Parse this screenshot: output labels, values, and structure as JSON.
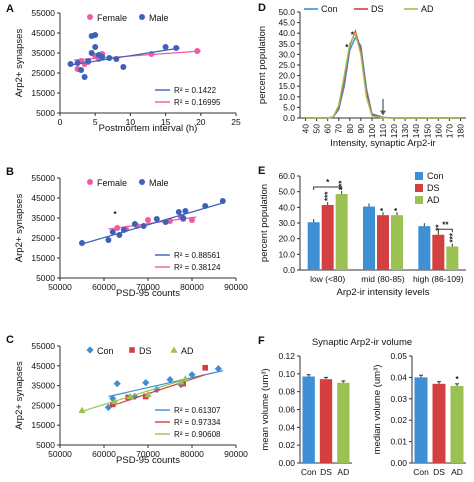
{
  "colors": {
    "female": "#ee5aa6",
    "male": "#3a63b8",
    "con": "#3f8fd4",
    "ds": "#d44040",
    "ad": "#9bc153",
    "axis": "#333333",
    "grid": "#d9d9d9"
  },
  "chart_data": [
    {
      "panel": "A",
      "type": "scatter",
      "xlabel": "Postmortem interval (h)",
      "ylabel": "Arp2+ synapses",
      "xlim": [
        0,
        25
      ],
      "ylim": [
        5000,
        55000
      ],
      "xticks": [
        "0",
        "5",
        "10",
        "15",
        "20",
        "25"
      ],
      "yticks": [
        "5000",
        "15000",
        "25000",
        "35000",
        "45000",
        "55000"
      ],
      "legend": [
        "Female",
        "Male"
      ],
      "series": [
        {
          "name": "Female",
          "color": "#ee5aa6",
          "points": [
            [
              2.5,
              27000
            ],
            [
              3,
              31000
            ],
            [
              3.5,
              29500
            ],
            [
              4,
              30500
            ],
            [
              5,
              33500
            ],
            [
              5.5,
              32000
            ],
            [
              6,
              34500
            ],
            [
              13,
              34500
            ],
            [
              19.5,
              36000
            ]
          ],
          "trend": [
            [
              2,
              31500
            ],
            [
              20,
              36000
            ]
          ],
          "r2": "R² = 0.16995"
        },
        {
          "name": "Male",
          "color": "#3a63b8",
          "points": [
            [
              1.5,
              29500
            ],
            [
              2.5,
              30000
            ],
            [
              3,
              26500
            ],
            [
              3.5,
              23000
            ],
            [
              4,
              31000
            ],
            [
              4.5,
              35000
            ],
            [
              4.5,
              43500
            ],
            [
              5,
              44000
            ],
            [
              5,
              38000
            ],
            [
              5.5,
              34000
            ],
            [
              6,
              33000
            ],
            [
              7,
              32500
            ],
            [
              8,
              32000
            ],
            [
              9,
              28000
            ],
            [
              15,
              38000
            ],
            [
              16.5,
              37500
            ]
          ],
          "trend": [
            [
              1.5,
              29000
            ],
            [
              17,
              37500
            ]
          ],
          "r2": "R² = 0.1422"
        }
      ]
    },
    {
      "panel": "B",
      "type": "scatter",
      "xlabel": "PSD-95 counts",
      "ylabel": "Arp2+ synapses",
      "xlim": [
        50000,
        90000
      ],
      "ylim": [
        5000,
        55000
      ],
      "xticks": [
        "50000",
        "60000",
        "70000",
        "80000",
        "90000"
      ],
      "yticks": [
        "5000",
        "15000",
        "25000",
        "35000",
        "45000",
        "55000"
      ],
      "legend": [
        "Female",
        "Male"
      ],
      "annotations": [
        {
          "text": "*",
          "x": 62500,
          "y": 35500
        }
      ],
      "series": [
        {
          "name": "Female",
          "color": "#ee5aa6",
          "points": [
            [
              63000,
              30000
            ],
            [
              65000,
              29500
            ],
            [
              67500,
              31000
            ],
            [
              70000,
              34000
            ],
            [
              75000,
              33500
            ],
            [
              77500,
              35500
            ],
            [
              78000,
              34500
            ],
            [
              80000,
              34000
            ]
          ],
          "trend": [
            [
              61000,
              29500
            ],
            [
              81000,
              35500
            ]
          ],
          "r2": "R² = 0.38124"
        },
        {
          "name": "Male",
          "color": "#3a63b8",
          "points": [
            [
              55000,
              22500
            ],
            [
              61000,
              24000
            ],
            [
              62000,
              28000
            ],
            [
              63500,
              26500
            ],
            [
              64500,
              29000
            ],
            [
              67000,
              32000
            ],
            [
              69000,
              31000
            ],
            [
              72000,
              34500
            ],
            [
              74000,
              33000
            ],
            [
              77000,
              38000
            ],
            [
              78000,
              35000
            ],
            [
              78500,
              38500
            ],
            [
              83000,
              41000
            ],
            [
              87000,
              43500
            ]
          ],
          "trend": [
            [
              55000,
              22000
            ],
            [
              87000,
              42500
            ]
          ],
          "r2": "R² = 0.88561"
        }
      ]
    },
    {
      "panel": "C",
      "type": "scatter",
      "xlabel": "PSD-95 counts",
      "ylabel": "Arp2+ synapses",
      "xlim": [
        50000,
        90000
      ],
      "ylim": [
        5000,
        55000
      ],
      "xticks": [
        "50000",
        "60000",
        "70000",
        "80000",
        "90000"
      ],
      "yticks": [
        "5000",
        "15000",
        "25000",
        "35000",
        "45000",
        "55000"
      ],
      "legend": [
        "Con",
        "DS",
        "AD"
      ],
      "series": [
        {
          "name": "Con",
          "color": "#3f8fd4",
          "marker": "diamond",
          "points": [
            [
              61000,
              24000
            ],
            [
              62000,
              28500
            ],
            [
              63000,
              36000
            ],
            [
              67000,
              29500
            ],
            [
              69500,
              36500
            ],
            [
              72000,
              33000
            ],
            [
              75000,
              38000
            ],
            [
              77500,
              35500
            ],
            [
              80000,
              40500
            ],
            [
              86000,
              43500
            ]
          ],
          "trend": [
            [
              61000,
              29500
            ],
            [
              87000,
              42500
            ]
          ],
          "r2": "R² = 0.61307"
        },
        {
          "name": "DS",
          "color": "#d44040",
          "marker": "square",
          "points": [
            [
              62000,
              25500
            ],
            [
              65500,
              29000
            ],
            [
              69500,
              29500
            ],
            [
              78000,
              36000
            ],
            [
              83000,
              44000
            ]
          ],
          "trend": [
            [
              62000,
              25000
            ],
            [
              83000,
              40500
            ]
          ],
          "r2": "R² = 0.97334"
        },
        {
          "name": "AD",
          "color": "#9bc153",
          "marker": "triangle",
          "points": [
            [
              55000,
              22500
            ],
            [
              62500,
              27000
            ],
            [
              66000,
              29500
            ],
            [
              70000,
              30500
            ],
            [
              77500,
              37000
            ],
            [
              78500,
              38500
            ]
          ],
          "trend": [
            [
              55000,
              22000
            ],
            [
              79000,
              38500
            ]
          ],
          "r2": "R² = 0.90608"
        }
      ]
    },
    {
      "panel": "D",
      "type": "line",
      "xlabel": "Intensity, synaptic Arp2-ir",
      "ylabel": "percent population",
      "x": [
        40,
        50,
        60,
        70,
        80,
        90,
        100,
        110,
        120,
        130,
        140,
        150,
        160,
        170,
        180
      ],
      "ylim": [
        0,
        50
      ],
      "yticks": [
        "0.0",
        "5.0",
        "10.0",
        "15.0",
        "20.0",
        "25.0",
        "30.0",
        "35.0",
        "40.0",
        "45.0",
        "50.0"
      ],
      "legend_position": "top",
      "annotations": [
        {
          "text": "*",
          "x": 80,
          "y": 32
        },
        {
          "text": "*",
          "x": 85,
          "y": 38
        }
      ],
      "arrow_at_x": 110,
      "series": [
        {
          "name": "Con",
          "color": "#3f8fd4",
          "x": [
            40,
            50,
            60,
            65,
            70,
            75,
            80,
            85,
            90,
            95,
            100,
            110,
            120,
            130,
            140,
            150,
            160,
            170,
            180
          ],
          "values": [
            0,
            0,
            0,
            0.5,
            4,
            15,
            32,
            38,
            34,
            14,
            2,
            0.3,
            0,
            0,
            0,
            0,
            0,
            0,
            0
          ]
        },
        {
          "name": "DS",
          "color": "#d44040",
          "x": [
            40,
            50,
            60,
            65,
            70,
            75,
            80,
            85,
            90,
            95,
            100,
            110,
            120,
            130,
            140,
            150,
            160,
            170,
            180
          ],
          "values": [
            0,
            0,
            0,
            0.5,
            5,
            18,
            34,
            41,
            32,
            12,
            1.5,
            0.2,
            0,
            0,
            0,
            0,
            0,
            0,
            0
          ]
        },
        {
          "name": "AD",
          "color": "#9bc153",
          "x": [
            40,
            50,
            60,
            65,
            70,
            75,
            80,
            85,
            90,
            95,
            100,
            110,
            120,
            130,
            140,
            150,
            160,
            170,
            180
          ],
          "values": [
            0,
            0,
            0,
            0.5,
            6,
            20,
            35,
            40,
            30,
            10,
            1,
            0.1,
            0,
            0,
            0,
            0,
            0,
            0,
            0
          ]
        }
      ]
    },
    {
      "panel": "E",
      "type": "bar",
      "xlabel": "Arp2-ir intensity levels",
      "ylabel": "percent population",
      "categories": [
        "low (<80)",
        "mid (80-85)",
        "high (86-109)"
      ],
      "ylim": [
        0,
        60
      ],
      "yticks": [
        "0.0",
        "10.0",
        "20.0",
        "30.0",
        "40.0",
        "50.0",
        "60.0"
      ],
      "legend": [
        "Con",
        "DS",
        "AD"
      ],
      "series": [
        {
          "name": "Con",
          "color": "#3f8fd4",
          "values": [
            30.5,
            40.5,
            28
          ]
        },
        {
          "name": "DS",
          "color": "#d44040",
          "values": [
            41.5,
            35,
            22.5
          ]
        },
        {
          "name": "AD",
          "color": "#9bc153",
          "values": [
            48.5,
            35,
            15
          ]
        }
      ],
      "significance": [
        {
          "category": 0,
          "series": 1,
          "text": "***"
        },
        {
          "category": 0,
          "series": 2,
          "text": "***"
        },
        {
          "category": 1,
          "series": 1,
          "text": "*"
        },
        {
          "category": 1,
          "series": 2,
          "text": "*"
        },
        {
          "category": 2,
          "series": 1,
          "text": "**"
        },
        {
          "category": 2,
          "series": 2,
          "text": "***"
        }
      ],
      "brackets": [
        {
          "category": 0,
          "from_series": 0,
          "to_series": 2,
          "text": "*",
          "y": 53
        },
        {
          "category": 2,
          "from_series": 1,
          "to_series": 2,
          "text": "**",
          "y": 26
        }
      ]
    },
    {
      "panel": "F",
      "type": "bar",
      "title": "Synaptic Arp2-ir volume",
      "charts": [
        {
          "ylabel": "mean volume (um³)",
          "categories": [
            "Con",
            "DS",
            "AD"
          ],
          "colors": [
            "#3f8fd4",
            "#d44040",
            "#9bc153"
          ],
          "values": [
            0.097,
            0.094,
            0.09
          ],
          "errors": [
            0.002,
            0.002,
            0.002
          ],
          "ylim": [
            0,
            0.12
          ],
          "yticks": [
            "0.00",
            "0.02",
            "0.04",
            "0.06",
            "0.08",
            "0.10",
            "0.12"
          ],
          "stars": [
            "",
            "",
            ""
          ]
        },
        {
          "ylabel": "median volume (um³)",
          "categories": [
            "Con",
            "DS",
            "AD"
          ],
          "colors": [
            "#3f8fd4",
            "#d44040",
            "#9bc153"
          ],
          "values": [
            0.04,
            0.037,
            0.036
          ],
          "errors": [
            0.001,
            0.001,
            0.001
          ],
          "ylim": [
            0,
            0.05
          ],
          "yticks": [
            "0.00",
            "0.01",
            "0.02",
            "0.03",
            "0.04",
            "0.05"
          ],
          "stars": [
            "",
            "",
            "*"
          ]
        }
      ]
    }
  ]
}
